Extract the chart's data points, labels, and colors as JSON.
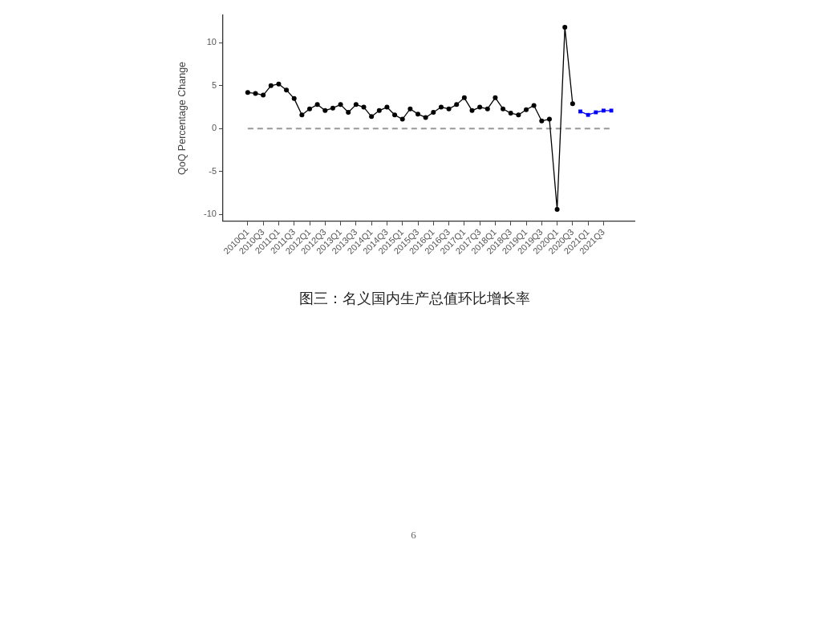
{
  "chart_data": {
    "type": "line",
    "title": "图三：名义国内生产总值环比增长率",
    "ylabel": "QoQ Percentage Change",
    "annotations": [
      "6"
    ],
    "categories": [
      "2010Q1",
      null,
      "2010Q3",
      null,
      "2011Q1",
      null,
      "2011Q3",
      null,
      "2012Q1",
      null,
      "2012Q3",
      null,
      "2013Q1",
      null,
      "2013Q3",
      null,
      "2014Q1",
      null,
      "2014Q3",
      null,
      "2015Q1",
      null,
      "2015Q3",
      null,
      "2016Q1",
      null,
      "2016Q3",
      null,
      "2017Q1",
      null,
      "2017Q3",
      null,
      "2018Q1",
      null,
      "2018Q3",
      null,
      "2019Q1",
      null,
      "2019Q3",
      null,
      "2020Q1",
      null,
      "2020Q3",
      null,
      "2021Q1",
      null,
      "2021Q3",
      null
    ],
    "series": [
      {
        "color": "#000000",
        "marker": "circle",
        "values": [
          4.2,
          4.1,
          3.9,
          5.0,
          5.2,
          4.5,
          3.5,
          1.6,
          2.3,
          2.8,
          2.1,
          2.4,
          2.8,
          1.9,
          2.8,
          2.5,
          1.4,
          2.1,
          2.5,
          1.6,
          1.1,
          2.3,
          1.7,
          1.3,
          1.9,
          2.5,
          2.3,
          2.8,
          3.6,
          2.1,
          2.5,
          2.3,
          3.6,
          2.3,
          1.8,
          1.6,
          2.2,
          2.7,
          0.9,
          1.1,
          -9.4,
          11.8,
          2.9,
          null,
          null,
          null,
          null,
          null
        ]
      },
      {
        "color": "#0000ff",
        "marker": "square",
        "values": [
          null,
          null,
          null,
          null,
          null,
          null,
          null,
          null,
          null,
          null,
          null,
          null,
          null,
          null,
          null,
          null,
          null,
          null,
          null,
          null,
          null,
          null,
          null,
          null,
          null,
          null,
          null,
          null,
          null,
          null,
          null,
          null,
          null,
          null,
          null,
          null,
          null,
          null,
          null,
          null,
          null,
          null,
          null,
          2.0,
          1.6,
          1.9,
          2.1,
          2.1
        ]
      }
    ],
    "ylim": [
      -10.8,
      13.2
    ],
    "yticks": [
      -10,
      -5,
      0,
      5,
      10
    ],
    "line_style": "solid",
    "ref_lines": [
      {
        "axis": "y",
        "value": 0,
        "color": "#999999",
        "line_style": "dashed"
      }
    ]
  }
}
